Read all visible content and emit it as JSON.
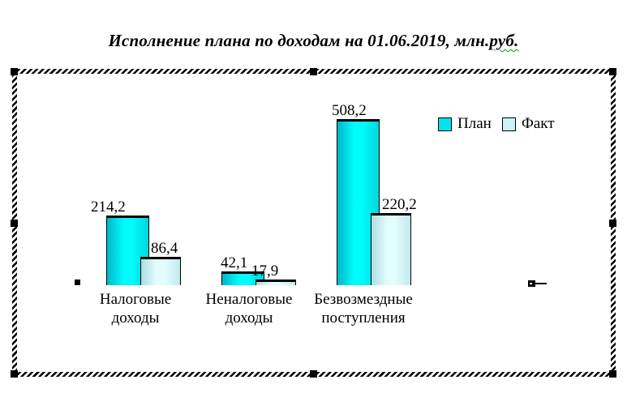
{
  "title": {
    "text_main": "Исполнение плана по доходам на 01.06.2019, млн.",
    "text_spellcheck": "руб.",
    "spellcheck_color": "#00a000"
  },
  "legend": {
    "items": [
      {
        "label": "План",
        "color": "#00e4ee"
      },
      {
        "label": "Факт",
        "color": "#cbf3f8"
      }
    ]
  },
  "chart_data": {
    "type": "bar",
    "title": "Исполнение плана по доходам на 01.06.2019, млн.руб.",
    "categories": [
      "Налоговые доходы",
      "Неналоговые доходы",
      "Безвозмездные поступления"
    ],
    "series": [
      {
        "name": "План",
        "values": [
          214.2,
          42.1,
          508.2
        ],
        "value_labels": [
          "214,2",
          "42,1",
          "508,2"
        ],
        "color_edge": "#00b7c9",
        "color_main": "#00fbfb",
        "color_shade": "#00d4dc"
      },
      {
        "name": "Факт",
        "values": [
          86.4,
          17.9,
          220.2
        ],
        "value_labels": [
          "86,4",
          "17,9",
          "220,2"
        ],
        "color_edge": "#aedde3",
        "color_main": "#e3fcfc",
        "color_shade": "#c2e9ed"
      }
    ],
    "ylim": [
      0,
      520
    ],
    "grid": false,
    "axes_visible": false,
    "legend_position": "top-right",
    "bar_outline_color": "#000000"
  }
}
